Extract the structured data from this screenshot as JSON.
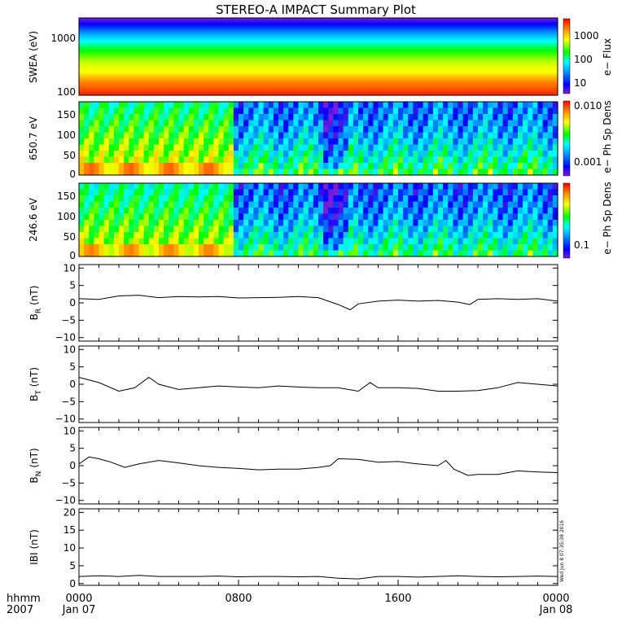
{
  "title": "STEREO-A IMPACT Summary Plot",
  "stamp": "Wed Jun  8 07:35:38 2016",
  "time_axis": {
    "row1_labels": [
      "0000",
      "0800",
      "1600",
      "0000"
    ],
    "row2_labels": [
      "Jan 07",
      "",
      "",
      "Jan 08"
    ],
    "corner_row1": "hhmm",
    "corner_row2": "2007"
  },
  "colors": {
    "colormap": [
      "#7b1fd6",
      "#0000ff",
      "#00a0ff",
      "#00ffff",
      "#00ff00",
      "#ffff00",
      "#ff8c00",
      "#ff0000"
    ]
  },
  "chart_data": [
    {
      "type": "heatmap",
      "id": "swea",
      "ylabel": "SWEA (eV)",
      "yscale": "log",
      "yticks": [
        "1000",
        "100"
      ],
      "colorbar": {
        "label": "e− Flux",
        "scale": "log",
        "ticks": [
          "1000",
          "100",
          "10"
        ]
      }
    },
    {
      "type": "heatmap",
      "id": "pad650",
      "ylabel": "650.7 eV",
      "yscale": "linear",
      "ylim": [
        0,
        180
      ],
      "yticks": [
        "150",
        "100",
        "50",
        "0"
      ],
      "colorbar": {
        "label": "e− Ph Sp Dens",
        "scale": "log",
        "ticks": [
          "0.010",
          "0.001"
        ]
      }
    },
    {
      "type": "heatmap",
      "id": "pad246",
      "ylabel": "246.6 eV",
      "yscale": "linear",
      "ylim": [
        0,
        180
      ],
      "yticks": [
        "150",
        "100",
        "50",
        "0"
      ],
      "colorbar": {
        "label": "e− Ph Sp Dens",
        "scale": "log",
        "ticks": [
          "0.1"
        ]
      }
    },
    {
      "type": "line",
      "id": "br",
      "ylabel": "B",
      "ylabel_sub": "R",
      "ylabel_unit": "(nT)",
      "ylim": [
        -11,
        11
      ],
      "yticks": [
        "10",
        "5",
        "0",
        "−5",
        "−10"
      ],
      "x_hours": [
        0,
        1,
        2,
        3,
        4,
        5,
        6,
        7,
        8,
        9,
        10,
        11,
        12,
        13,
        13.6,
        14,
        15,
        16,
        17,
        18,
        19,
        19.6,
        20,
        21,
        22,
        23,
        24
      ],
      "values": [
        1.2,
        1.0,
        2.0,
        2.2,
        1.5,
        1.8,
        1.7,
        1.8,
        1.4,
        1.5,
        1.6,
        1.8,
        1.5,
        -0.5,
        -2.0,
        -0.3,
        0.5,
        0.8,
        0.5,
        0.7,
        0.2,
        -0.5,
        1.0,
        1.2,
        1.0,
        1.2,
        0.5
      ]
    },
    {
      "type": "line",
      "id": "bt",
      "ylabel": "B",
      "ylabel_sub": "T",
      "ylabel_unit": "(nT)",
      "ylim": [
        -11,
        11
      ],
      "yticks": [
        "10",
        "5",
        "0",
        "−5",
        "−10"
      ],
      "x_hours": [
        0,
        1,
        2,
        2.8,
        3.5,
        4,
        5,
        6,
        7,
        8,
        9,
        10,
        11,
        12,
        13,
        14,
        14.6,
        15,
        16,
        17,
        18,
        19,
        20,
        21,
        22,
        23,
        24
      ],
      "values": [
        2.0,
        0.5,
        -2.0,
        -1.0,
        2.0,
        0.0,
        -1.5,
        -1.0,
        -0.5,
        -0.8,
        -1.0,
        -0.5,
        -0.8,
        -1.0,
        -1.0,
        -2.0,
        0.5,
        -1.0,
        -1.0,
        -1.2,
        -2.0,
        -2.0,
        -1.8,
        -1.0,
        0.5,
        0.0,
        -0.5
      ]
    },
    {
      "type": "line",
      "id": "bn",
      "ylabel": "B",
      "ylabel_sub": "N",
      "ylabel_unit": "(nT)",
      "ylim": [
        -11,
        11
      ],
      "yticks": [
        "10",
        "5",
        "0",
        "−5",
        "−10"
      ],
      "x_hours": [
        0,
        0.5,
        1,
        1.6,
        2.3,
        3,
        4,
        5,
        6,
        7,
        8,
        9,
        10,
        11,
        12,
        12.6,
        13,
        14,
        15,
        16,
        17,
        18,
        18.4,
        18.8,
        19.5,
        20,
        21,
        22,
        23,
        24
      ],
      "values": [
        0.5,
        2.5,
        2.0,
        1.0,
        -0.5,
        0.5,
        1.5,
        0.8,
        0.0,
        -0.5,
        -0.8,
        -1.2,
        -1.0,
        -1.0,
        -0.5,
        0.0,
        2.0,
        1.8,
        1.0,
        1.2,
        0.5,
        0.0,
        1.5,
        -1.0,
        -2.8,
        -2.5,
        -2.5,
        -1.5,
        -1.8,
        -2.0
      ]
    },
    {
      "type": "line",
      "id": "btot",
      "ylabel": "IBI",
      "ylabel_unit": "(nT)",
      "ylim": [
        -0.5,
        21
      ],
      "yticks": [
        "20",
        "15",
        "10",
        "5",
        "0"
      ],
      "x_hours": [
        0,
        1,
        2,
        3,
        4,
        5,
        6,
        7,
        8,
        9,
        10,
        11,
        12,
        13,
        14,
        15,
        16,
        17,
        18,
        19,
        20,
        21,
        22,
        23,
        24
      ],
      "values": [
        2.0,
        2.2,
        2.0,
        2.3,
        2.0,
        2.0,
        2.0,
        2.1,
        1.9,
        2.0,
        2.0,
        1.9,
        2.0,
        1.5,
        1.3,
        2.0,
        2.0,
        1.8,
        2.0,
        2.2,
        2.0,
        1.9,
        2.0,
        2.1,
        2.0
      ]
    }
  ]
}
